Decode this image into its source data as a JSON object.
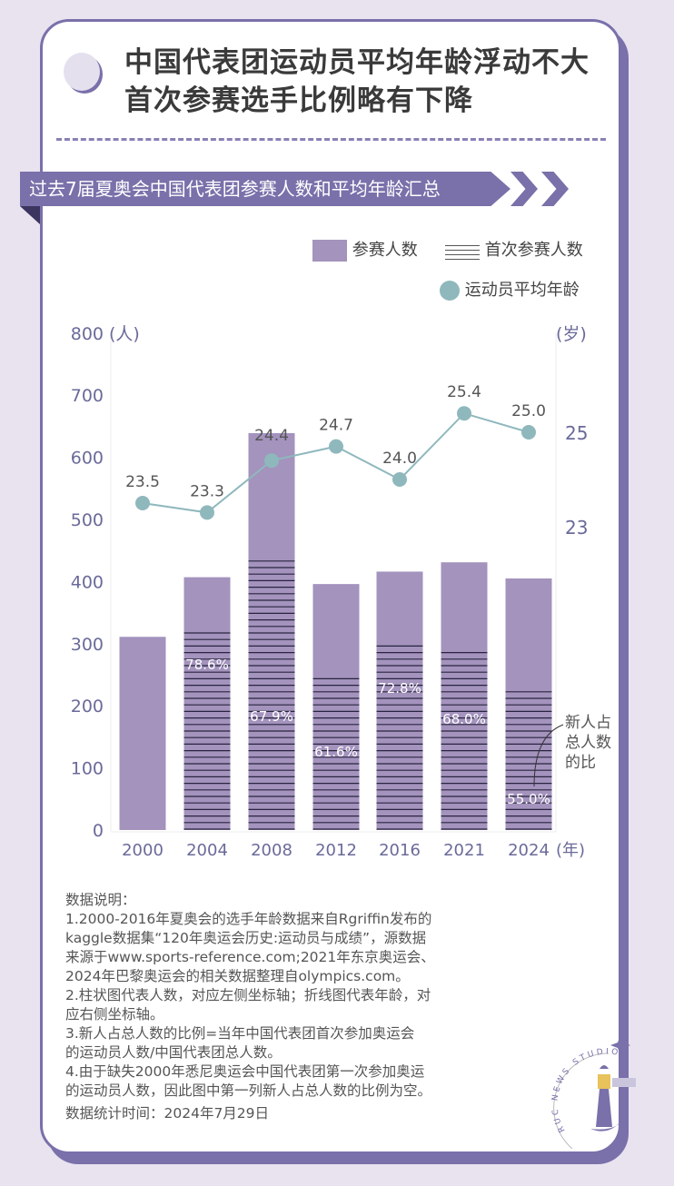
{
  "header": {
    "title_line1": "中国代表团运动员平均年龄浮动不大",
    "title_line2": "首次参赛选手比例略有下降"
  },
  "banner": {
    "text": "过去7届夏奥会中国代表团参赛人数和平均年龄汇总"
  },
  "legend": {
    "total": "参赛人数",
    "first_time": "首次参赛人数",
    "avg_age": "运动员平均年龄"
  },
  "annotation": {
    "line1": "新人占",
    "line2": "总人数",
    "line3": "的比"
  },
  "chart_data": {
    "type": "bar+line",
    "categories": [
      "2000",
      "2004",
      "2008",
      "2012",
      "2016",
      "2021",
      "2024"
    ],
    "x_unit": "(年)",
    "y_left": {
      "unit": "(人)",
      "range": [
        0,
        800
      ],
      "ticks": [
        "0",
        "100",
        "200",
        "300",
        "400",
        "500",
        "600",
        "700",
        "800"
      ]
    },
    "y_right": {
      "unit": "(岁)",
      "ticks": [
        "23",
        "25"
      ],
      "tick_values": [
        23,
        25
      ]
    },
    "series": [
      {
        "name": "参赛人数",
        "type": "bar",
        "values": [
          311,
          407,
          639,
          396,
          416,
          431,
          405
        ]
      },
      {
        "name": "首次参赛人数",
        "type": "bar-hatched",
        "values": [
          null,
          320,
          434,
          244,
          303,
          293,
          223
        ]
      },
      {
        "name": "运动员平均年龄",
        "type": "line",
        "values": [
          23.5,
          23.3,
          24.4,
          24.7,
          24.0,
          25.4,
          25.0
        ],
        "labels": [
          "23.5",
          "23.3",
          "24.4",
          "24.7",
          "24.0",
          "25.4",
          "25.0"
        ]
      }
    ],
    "ratio_labels": [
      "",
      "78.6%",
      "67.9%",
      "61.6%",
      "72.8%",
      "68.0%",
      "55.0%"
    ],
    "colors": {
      "bar": "#a393bd",
      "hatch": "#2a2440",
      "line": "#8fb8bd",
      "axis_text": "#6a6a9a"
    }
  },
  "notes": {
    "heading": "数据说明：",
    "lines": [
      "1.2000-2016年夏奥会的选手年龄数据来自Rgriffin发布的",
      "kaggle数据集“120年奥运会历史:运动员与成绩”，源数据",
      "来源于www.sports-reference.com;2021年东京奥运会、",
      "2024年巴黎奥运会的相关数据整理自olympics.com。",
      "2.柱状图代表人数，对应左侧坐标轴；折线图代表年龄，对",
      "应右侧坐标轴。",
      "3.新人占总人数的比例=当年中国代表团首次参加奥运会",
      "的运动员人数/中国代表团总人数。",
      "4.由于缺失2000年悉尼奥运会中国代表团第一次参加奥运",
      "的运动员人数，因此图中第一列新人占总人数的比例为空。"
    ],
    "date": "数据统计时间：2024年7月29日"
  },
  "logo": {
    "text": "RUC NEWS STUDIO"
  }
}
